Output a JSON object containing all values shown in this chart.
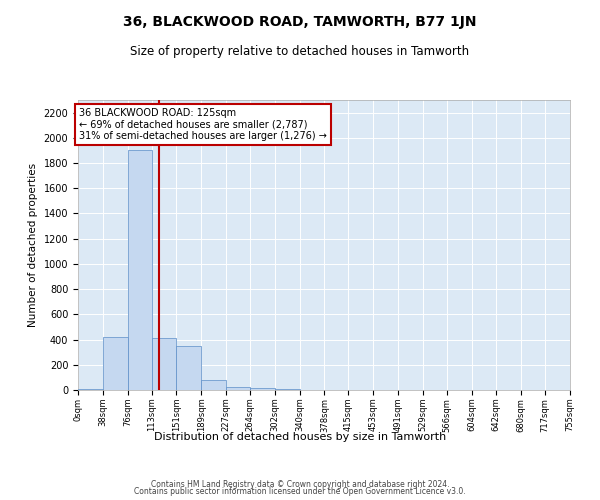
{
  "title": "36, BLACKWOOD ROAD, TAMWORTH, B77 1JN",
  "subtitle": "Size of property relative to detached houses in Tamworth",
  "xlabel": "Distribution of detached houses by size in Tamworth",
  "ylabel": "Number of detached properties",
  "annotation_line1": "36 BLACKWOOD ROAD: 125sqm",
  "annotation_line2": "← 69% of detached houses are smaller (2,787)",
  "annotation_line3": "31% of semi-detached houses are larger (1,276) →",
  "property_size": 125,
  "bin_edges": [
    0,
    38,
    76,
    113,
    151,
    189,
    227,
    264,
    302,
    340,
    378,
    415,
    453,
    491,
    529,
    566,
    604,
    642,
    680,
    717,
    755
  ],
  "bar_values": [
    10,
    420,
    1900,
    410,
    350,
    80,
    25,
    15,
    5,
    0,
    0,
    0,
    0,
    0,
    0,
    0,
    0,
    0,
    0,
    0
  ],
  "bar_color": "#c5d8f0",
  "bar_edge_color": "#5b8dc8",
  "red_line_color": "#bb0000",
  "annotation_box_edge_color": "#bb0000",
  "plot_bg_color": "#dce9f5",
  "background_color": "#ffffff",
  "grid_color": "#ffffff",
  "ylim": [
    0,
    2300
  ],
  "yticks": [
    0,
    200,
    400,
    600,
    800,
    1000,
    1200,
    1400,
    1600,
    1800,
    2000,
    2200
  ],
  "footer_line1": "Contains HM Land Registry data © Crown copyright and database right 2024.",
  "footer_line2": "Contains public sector information licensed under the Open Government Licence v3.0."
}
